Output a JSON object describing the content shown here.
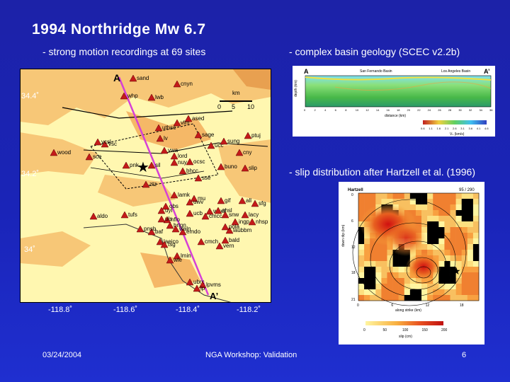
{
  "title": "1994 Northridge Mw 6.7",
  "subtitle_left": "- strong motion recordings at 69 sites",
  "subtitle_right_top": "- complex basin geology (SCEC v2.2b)",
  "subtitle_right_bottom": "- slip distribution after Hartzell et al. (1996)",
  "map": {
    "label_a": "A",
    "label_a_prime": "A’",
    "scale_unit": "km",
    "scale_ticks": [
      "0",
      "5",
      "10"
    ],
    "lat_ticks": [
      "34.4˚",
      "34.2˚",
      "34˚"
    ],
    "lon_ticks": [
      "-118.8˚",
      "-118.6˚",
      "-118.4˚",
      "-118.2˚"
    ],
    "sites": [
      "sand",
      "cnyn",
      "whp",
      "lwb",
      "ased",
      "vlm",
      "uthse",
      "ptuj",
      "sage",
      "lv",
      "vsc",
      "vcsl",
      "ucc",
      "sung",
      "wood",
      "sce",
      "vwa",
      "lord",
      "cny",
      "pnk",
      "sil",
      "nuy",
      "ocsc",
      "bhcc",
      "buno",
      "slip",
      "sse",
      "ztz",
      "lamk",
      "mu",
      "uwv",
      "gif",
      "all",
      "sfg",
      "obs",
      "uyl",
      "ucb",
      "cmcc",
      "tufs",
      "aldo",
      "waxlt",
      "snw",
      "ahsl",
      "nflo",
      "lacy",
      "brlgn",
      "baf",
      "emdo",
      "ingp",
      "waln",
      "uls",
      "nhsp",
      "pnsb",
      "laubbm",
      "pola",
      "laeico",
      "cmch",
      "bald",
      "vern",
      "tsg",
      "lmin",
      "wle",
      "ubrc",
      "lpvms",
      "lp"
    ]
  },
  "basin": {
    "label_left": "A",
    "label_right": "A’",
    "basin_left": "San Fernando Basin",
    "basin_right": "Los Angeles Basin",
    "ylabel": "depth (km)",
    "xlabel": "distance (km)",
    "x_ticks": [
      "0",
      "2",
      "4",
      "6",
      "8",
      "10",
      "12",
      "14",
      "16",
      "18",
      "20",
      "22",
      "24",
      "26",
      "28",
      "30",
      "32",
      "34",
      "36"
    ],
    "colorbar_ticks": [
      "0.6",
      "1.1",
      "1.6",
      "2.1",
      "2.6",
      "3.1",
      "3.6",
      "4.1",
      "4.6"
    ],
    "colorbar_label": "Vₛ (km/s)"
  },
  "slip": {
    "label": "Hartzell",
    "angles": "95 / 290",
    "ylabel": "down dip (km)",
    "xlabel": "along strike (km)",
    "x_ticks": [
      "0",
      "6",
      "12",
      "18"
    ],
    "y_ticks": [
      "0",
      "6",
      "12",
      "18",
      "21"
    ],
    "colorbar_ticks": [
      "0",
      "50",
      "100",
      "150",
      "200"
    ],
    "colorbar_label": "slip (cm)"
  },
  "footer": {
    "date": "03/24/2004",
    "center": "NGA Workshop: Validation",
    "page": "6"
  },
  "colors": {
    "background": "#1c22a8",
    "station": "#c41a1a",
    "profile_line": "#d640d6",
    "sediment": "#fff7b0",
    "hills": "#f7c777"
  }
}
